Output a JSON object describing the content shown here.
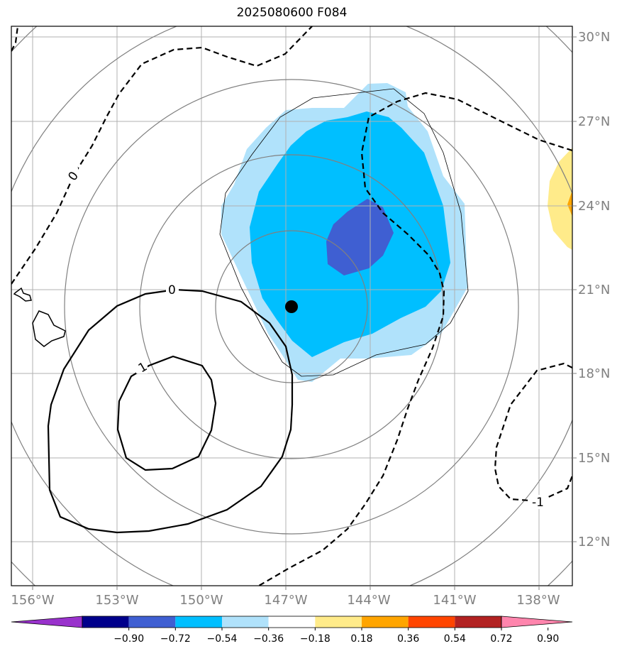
{
  "title": "2025080600 F084",
  "colors": {
    "grid": "#b0b0b0",
    "rings": "#808080",
    "fill_neg_018": "#b0e2fb",
    "fill_neg_036": "#00bfff",
    "fill_neg_054": "#3f5fd2",
    "fill_pos_018": "#ffeb8a",
    "fill_pos_036": "#ffa500",
    "center_marker": "#000000"
  },
  "axes": {
    "lon_ticks": [
      "156°W",
      "153°W",
      "150°W",
      "147°W",
      "144°W",
      "141°W",
      "138°W"
    ],
    "lat_ticks": [
      "30°N",
      "27°N",
      "24°N",
      "21°N",
      "18°N",
      "15°N",
      "12°N"
    ]
  },
  "contour_labels": {
    "dashed_zero": "0",
    "solid_zero": "0",
    "solid_one": "1",
    "dashed_neg_one": "-1"
  },
  "colorbar": {
    "colors": [
      "#9932cc",
      "#00008b",
      "#3f5fd2",
      "#00bfff",
      "#b0e2fb",
      "#ffffff",
      "#ffeb8a",
      "#ffa500",
      "#ff4500",
      "#b22222",
      "#ff85ad"
    ],
    "labels": [
      "−0.90",
      "−0.72",
      "−0.54",
      "−0.36",
      "−0.18",
      "0.18",
      "0.36",
      "0.54",
      "0.72",
      "0.90"
    ]
  }
}
